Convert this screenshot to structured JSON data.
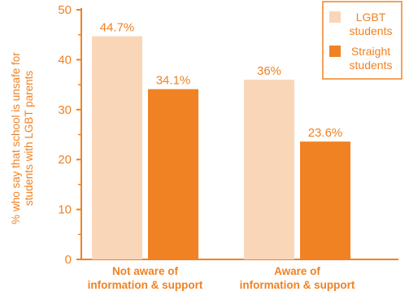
{
  "chart_data": {
    "type": "bar",
    "categories": [
      "Not aware of\ninformation & support",
      "Aware of\ninformation & support"
    ],
    "series": [
      {
        "name": "LGBT\nstudents",
        "values": [
          44.7,
          36
        ],
        "labels": [
          "44.7%",
          "36%"
        ]
      },
      {
        "name": "Straight\nstudents",
        "values": [
          34.1,
          23.6
        ],
        "labels": [
          "34.1%",
          "23.6%"
        ]
      }
    ],
    "ylabel": "% who say that school is unsafe for\nstudents with LGBT parents",
    "ylim": [
      0,
      50
    ],
    "yticks": [
      0,
      10,
      20,
      30,
      40,
      50
    ],
    "grid": false,
    "legend_position": "top-right"
  },
  "colors": {
    "accent": "#F08223",
    "lgbt": "#FAD6B8",
    "straight": "#F08223",
    "axis": "#F08223",
    "text_dark": "#1a1a1a"
  }
}
